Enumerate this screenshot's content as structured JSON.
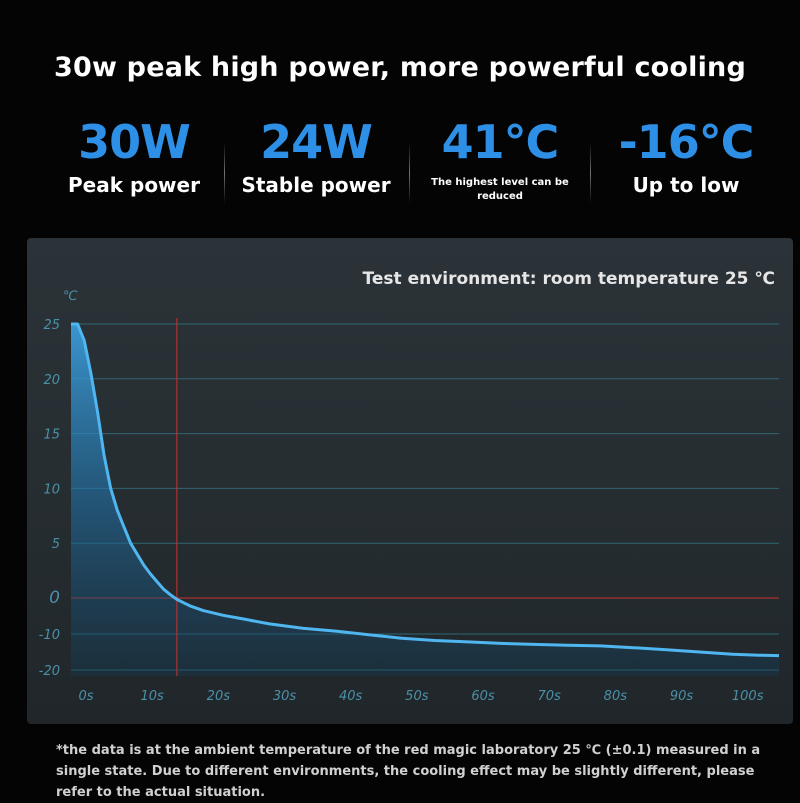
{
  "headline": "30w peak high power, more powerful cooling",
  "stats": [
    {
      "value": "30W",
      "label": "Peak power"
    },
    {
      "value": "24W",
      "label": "Stable power"
    },
    {
      "value": "41℃",
      "label": "The highest level can be reduced"
    },
    {
      "value": "-16℃",
      "label": "Up to low"
    }
  ],
  "colors": {
    "accent": "#2e8fe6",
    "curve": "#4fb6f0",
    "marker": "#c8322e",
    "grid": "#2f6675"
  },
  "chart_data": {
    "type": "area",
    "title": "Test environment: room temperature 25 ℃",
    "ylabel": "℃",
    "xlabel": "",
    "x_ticks": [
      "0s",
      "10s",
      "20s",
      "30s",
      "40s",
      "50s",
      "60s",
      "70s",
      "80s",
      "90s",
      "100s"
    ],
    "y_ticks": [
      "25",
      "20",
      "15",
      "10",
      "5",
      "0",
      "-10",
      "-20"
    ],
    "x_range": [
      0,
      107
    ],
    "grid": true,
    "marker_x": 16,
    "series": [
      {
        "x": [
          0,
          1,
          2,
          3,
          4,
          5,
          6,
          7,
          8,
          9,
          10,
          11,
          12,
          13,
          14,
          15,
          16,
          17,
          18,
          20,
          23,
          26,
          30,
          35,
          40,
          45,
          50,
          55,
          60,
          65,
          70,
          75,
          80,
          85,
          90,
          95,
          100,
          104,
          107
        ],
        "y": [
          25,
          25,
          23.5,
          20.5,
          17,
          13,
          10,
          8,
          6.5,
          5,
          4,
          3,
          2.2,
          1.5,
          0.8,
          0.3,
          -0.4,
          -1.3,
          -2.2,
          -3.5,
          -4.8,
          -5.8,
          -7.2,
          -8.4,
          -9.2,
          -10.2,
          -11.2,
          -11.8,
          -12.2,
          -12.6,
          -12.9,
          -13.1,
          -13.3,
          -13.8,
          -14.4,
          -15,
          -15.6,
          -15.9,
          -16
        ]
      }
    ]
  },
  "footnote": "*the data is at the ambient temperature of the red magic laboratory 25 ℃ (±0.1) measured in a single state. Due to different environments, the cooling effect may be slightly different, please refer to the actual situation."
}
